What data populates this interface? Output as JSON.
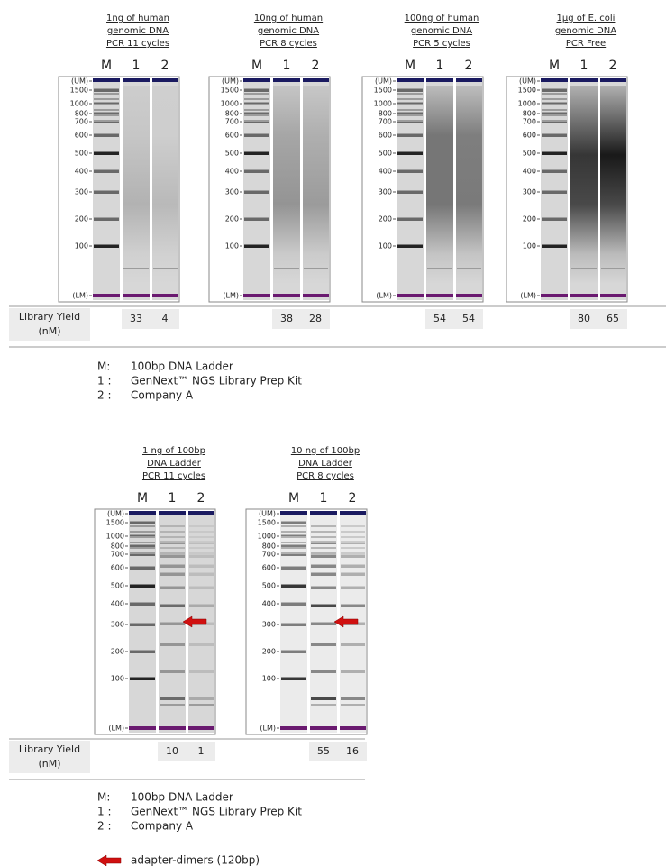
{
  "sections": [
    {
      "panels": [
        {
          "title": [
            "1ng of human",
            "genomic DNA",
            "PCR 11 cycles"
          ],
          "lanes": [
            "M",
            "1",
            "2"
          ],
          "yields": [
            "33",
            "4"
          ]
        },
        {
          "title": [
            "10ng of human",
            "genomic DNA",
            "PCR 8 cycles"
          ],
          "lanes": [
            "M",
            "1",
            "2"
          ],
          "yields": [
            "38",
            "28"
          ]
        },
        {
          "title": [
            "100ng of human",
            "genomic DNA",
            "PCR 5 cycles"
          ],
          "lanes": [
            "M",
            "1",
            "2"
          ],
          "yields": [
            "54",
            "54"
          ]
        },
        {
          "title": [
            "1µg of E. coli",
            "genomic DNA",
            "PCR Free"
          ],
          "lanes": [
            "M",
            "1",
            "2"
          ],
          "yields": [
            "80",
            "65"
          ]
        }
      ],
      "yield_label": [
        "Library Yield",
        "(nM)"
      ],
      "legend": [
        {
          "key": "M:",
          "text": "100bp DNA Ladder"
        },
        {
          "key": "1 :",
          "text": "GenNext™ NGS Library Prep Kit"
        },
        {
          "key": "2 :",
          "text": "Company A"
        }
      ]
    },
    {
      "panels": [
        {
          "title": [
            "1 ng of 100bp",
            "DNA Ladder",
            "PCR 11 cycles"
          ],
          "lanes": [
            "M",
            "1",
            "2"
          ],
          "yields": [
            "10",
            "1"
          ]
        },
        {
          "title": [
            "10 ng of 100bp",
            "DNA Ladder",
            "PCR 8 cycles"
          ],
          "lanes": [
            "M",
            "1",
            "2"
          ],
          "yields": [
            "55",
            "16"
          ]
        }
      ],
      "yield_label": [
        "Library Yield",
        "(nM)"
      ],
      "legend": [
        {
          "key": "M:",
          "text": "100bp DNA Ladder"
        },
        {
          "key": "1 :",
          "text": "GenNext™ NGS Library Prep Kit"
        },
        {
          "key": "2 :",
          "text": "Company A"
        }
      ],
      "arrow_note": "adapter-dimers (120bp)"
    }
  ],
  "size_labels": [
    "(UM)",
    "1500",
    "1000",
    "800",
    "700",
    "600",
    "500",
    "400",
    "300",
    "200",
    "100",
    "(LM)"
  ]
}
